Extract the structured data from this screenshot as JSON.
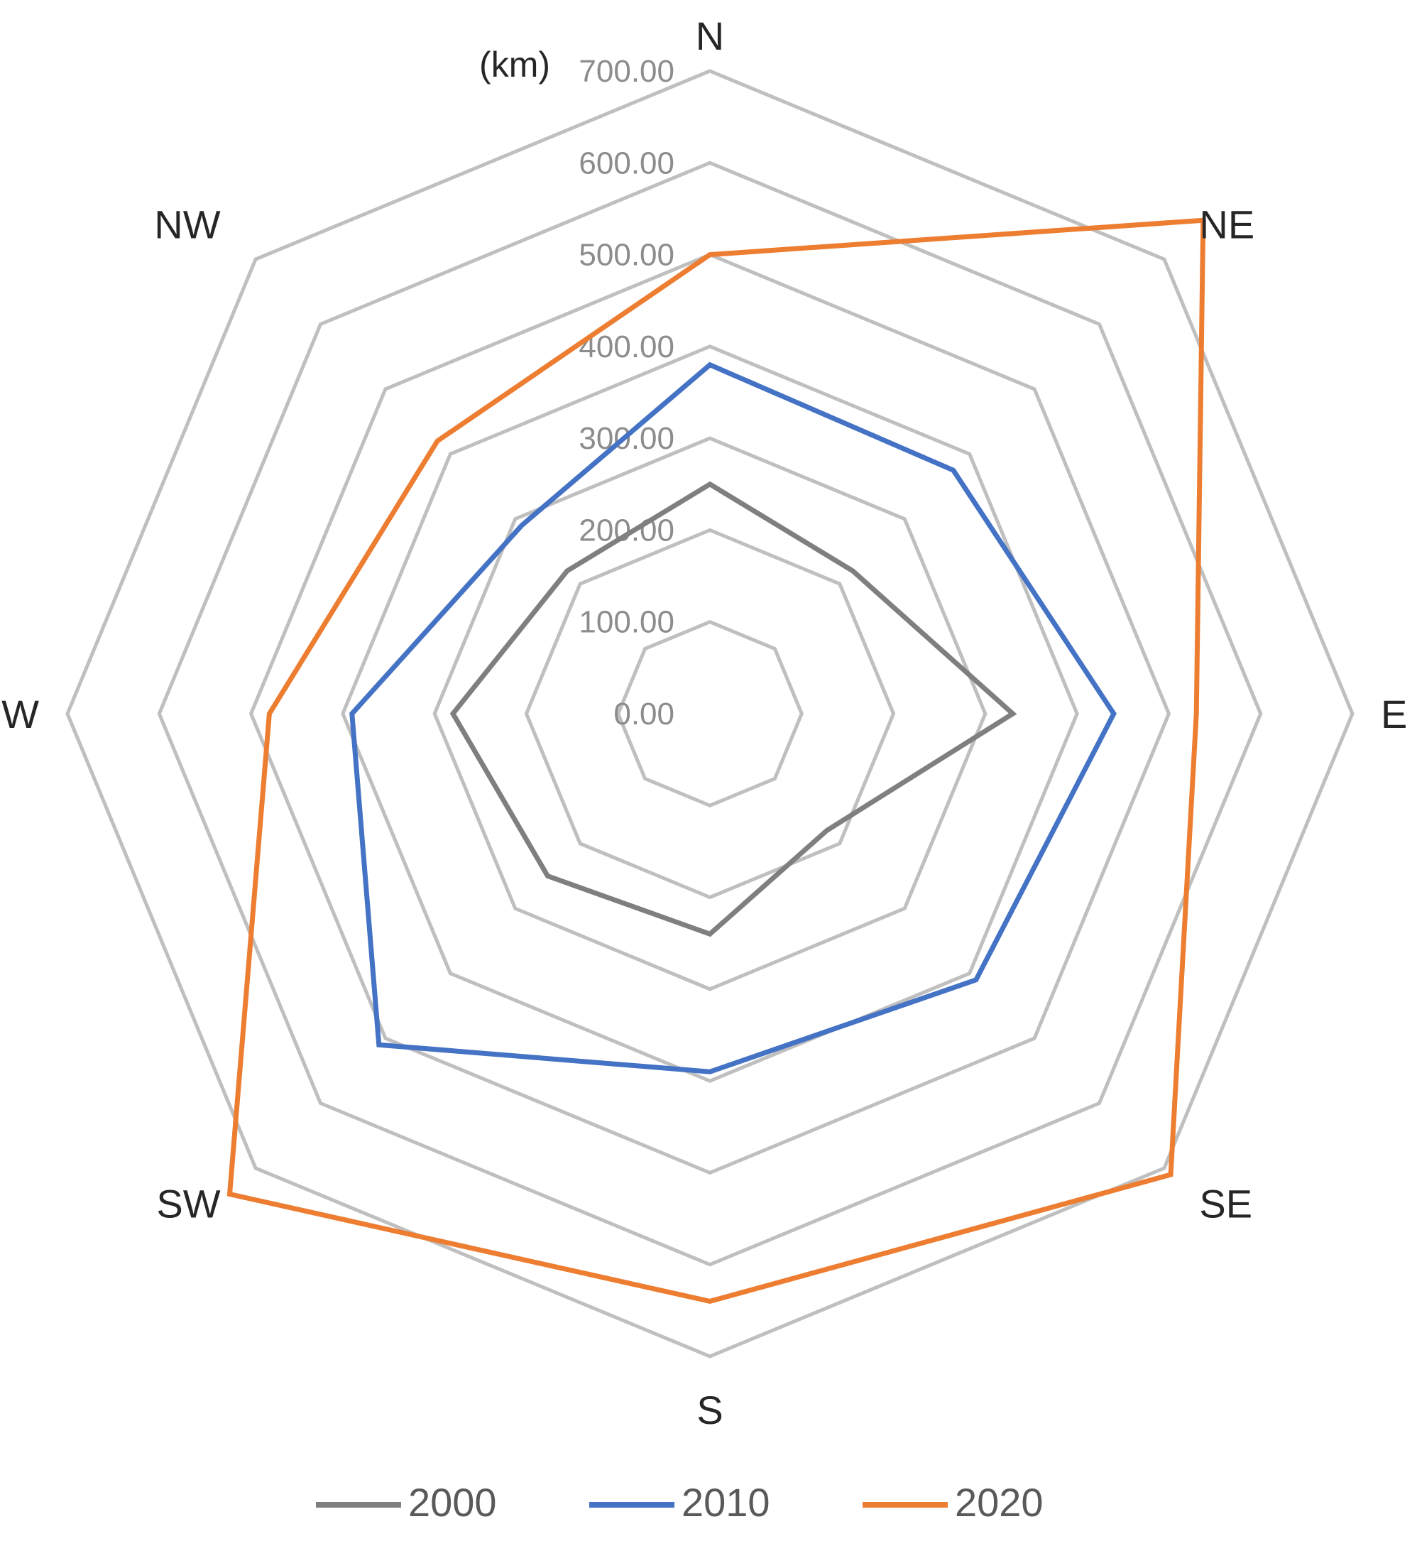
{
  "chart_data": {
    "type": "radar",
    "unit": "(km)",
    "categories": [
      "N",
      "NE",
      "E",
      "SE",
      "S",
      "SW",
      "W",
      "NW"
    ],
    "tick_labels": [
      "0.00",
      "100.00",
      "200.00",
      "300.00",
      "400.00",
      "500.00",
      "600.00",
      "700.00"
    ],
    "r_range": [
      0,
      700
    ],
    "grid": true,
    "legend_position": "bottom",
    "series": [
      {
        "name": "2000",
        "color": "#7f7f7f",
        "values": [
          250,
          220,
          330,
          180,
          240,
          250,
          280,
          220
        ]
      },
      {
        "name": "2010",
        "color": "#4472c4",
        "values": [
          380,
          375,
          440,
          410,
          390,
          510,
          390,
          290
        ]
      },
      {
        "name": "2020",
        "color": "#ed7d31",
        "values": [
          500,
          760,
          530,
          710,
          640,
          740,
          480,
          420
        ]
      }
    ]
  }
}
